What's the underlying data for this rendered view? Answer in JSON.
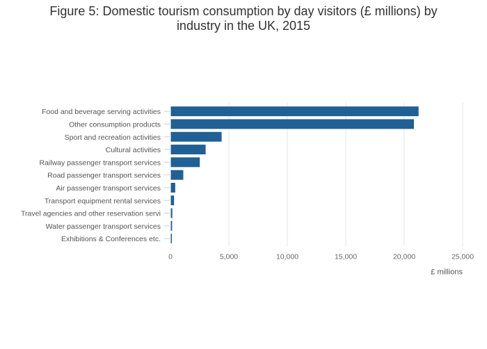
{
  "chart_data": {
    "type": "bar",
    "orientation": "horizontal",
    "title_lines": [
      "Figure 5: Domestic tourism consumption by day visitors (£ millions) by",
      "industry in the UK, 2015"
    ],
    "xlabel": "£ millions",
    "ylabel": "",
    "xlim": [
      0,
      25000
    ],
    "x_ticks": [
      0,
      5000,
      10000,
      15000,
      20000,
      25000
    ],
    "x_tick_labels": [
      "0",
      "5,000",
      "10,000",
      "15,000",
      "20,000",
      "25,000"
    ],
    "grid": true,
    "legend": "none",
    "bar_color": "#206095",
    "grid_color": "#e6e6e6",
    "categories": [
      "Food and beverage serving activities",
      "Other consumption products",
      "Sport and recreation activities",
      "Cultural activities",
      "Railway passenger transport services",
      "Road passenger transport services",
      "Air passenger transport services",
      "Transport equipment rental services",
      "Travel agencies and other reservation servi",
      "Water passenger transport services",
      "Exhibitions & Conferences etc."
    ],
    "values": [
      21200,
      20800,
      4350,
      2980,
      2480,
      1070,
      380,
      280,
      130,
      110,
      50
    ]
  }
}
